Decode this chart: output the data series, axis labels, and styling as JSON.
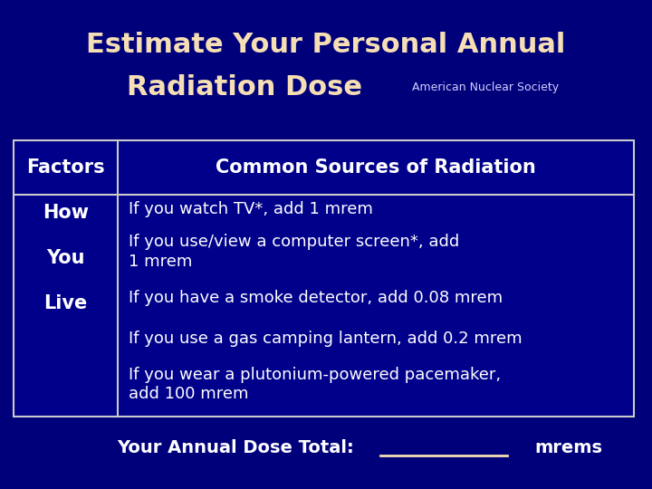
{
  "title_line1": "Estimate Your Personal Annual",
  "title_line2": "Radiation Dose",
  "subtitle": "American Nuclear Society",
  "bg_color": "#00007B",
  "title_color": "#F5DEB3",
  "subtitle_color": "#D0D0FF",
  "table_bg": "#00008B",
  "table_border_color": "#CCCCCC",
  "header_left": "Factors",
  "header_right": "Common Sources of Radiation",
  "col1_items": [
    "How",
    "You",
    "Live"
  ],
  "col2_items": [
    "If you watch TV*, add 1 mrem",
    "If you use/view a computer screen*, add\n1 mrem",
    "If you have a smoke detector, add 0.08 mrem",
    "If you use a gas camping lantern, add 0.2 mrem",
    "If you wear a plutonium-powered pacemaker,\nadd 100 mrem"
  ],
  "footer_text": "Your Annual Dose Total:",
  "footer_suffix": "mrems",
  "header_text_color": "#FFFFFF",
  "cell_text_color": "#FFFFFF",
  "col1_text_color": "#FFFFFF",
  "footer_text_color": "#FFFFFF",
  "underline_color": "#F5DEB3",
  "title_fontsize": 22,
  "subtitle_fontsize": 9,
  "header_fontsize": 15,
  "cell_fontsize": 13,
  "col1_fontsize": 15,
  "footer_fontsize": 14
}
